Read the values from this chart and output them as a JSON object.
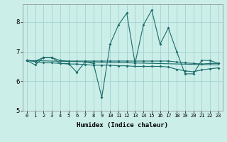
{
  "xlabel": "Humidex (Indice chaleur)",
  "bg_color": "#cceee8",
  "grid_color": "#99cccc",
  "line_color": "#1a6b6b",
  "xlim": [
    -0.5,
    23.5
  ],
  "ylim": [
    5,
    8.6
  ],
  "yticks": [
    5,
    6,
    7,
    8
  ],
  "xticks": [
    0,
    1,
    2,
    3,
    4,
    5,
    6,
    7,
    8,
    9,
    10,
    11,
    12,
    13,
    14,
    15,
    16,
    17,
    18,
    19,
    20,
    21,
    22,
    23
  ],
  "line1_x": [
    0,
    1,
    2,
    3,
    4,
    5,
    6,
    7,
    8,
    9,
    10,
    11,
    12,
    13,
    14,
    15,
    16,
    17,
    18,
    19,
    20,
    21,
    22,
    23
  ],
  "line1_y": [
    6.7,
    6.55,
    6.8,
    6.8,
    6.6,
    6.6,
    6.3,
    6.65,
    6.6,
    5.45,
    7.25,
    7.9,
    8.3,
    6.6,
    7.9,
    8.4,
    7.25,
    7.8,
    7.0,
    6.25,
    6.25,
    6.7,
    6.7,
    6.6
  ],
  "line2_x": [
    0,
    1,
    2,
    3,
    4,
    5,
    6,
    7,
    8,
    9,
    10,
    11,
    12,
    13,
    14,
    15,
    16,
    17,
    18,
    19,
    20,
    21,
    22,
    23
  ],
  "line2_y": [
    6.7,
    6.68,
    6.8,
    6.8,
    6.7,
    6.68,
    6.68,
    6.68,
    6.68,
    6.68,
    6.68,
    6.68,
    6.68,
    6.68,
    6.68,
    6.68,
    6.68,
    6.68,
    6.65,
    6.62,
    6.6,
    6.58,
    6.6,
    6.6
  ],
  "line3_x": [
    0,
    23
  ],
  "line3_y": [
    6.7,
    6.55
  ],
  "line4_x": [
    0,
    1,
    2,
    3,
    4,
    5,
    6,
    7,
    8,
    9,
    10,
    11,
    12,
    13,
    14,
    15,
    16,
    17,
    18,
    19,
    20,
    21,
    22,
    23
  ],
  "line4_y": [
    6.7,
    6.66,
    6.62,
    6.62,
    6.6,
    6.58,
    6.58,
    6.56,
    6.54,
    6.54,
    6.54,
    6.52,
    6.52,
    6.5,
    6.5,
    6.5,
    6.5,
    6.48,
    6.4,
    6.35,
    6.32,
    6.38,
    6.42,
    6.45
  ]
}
